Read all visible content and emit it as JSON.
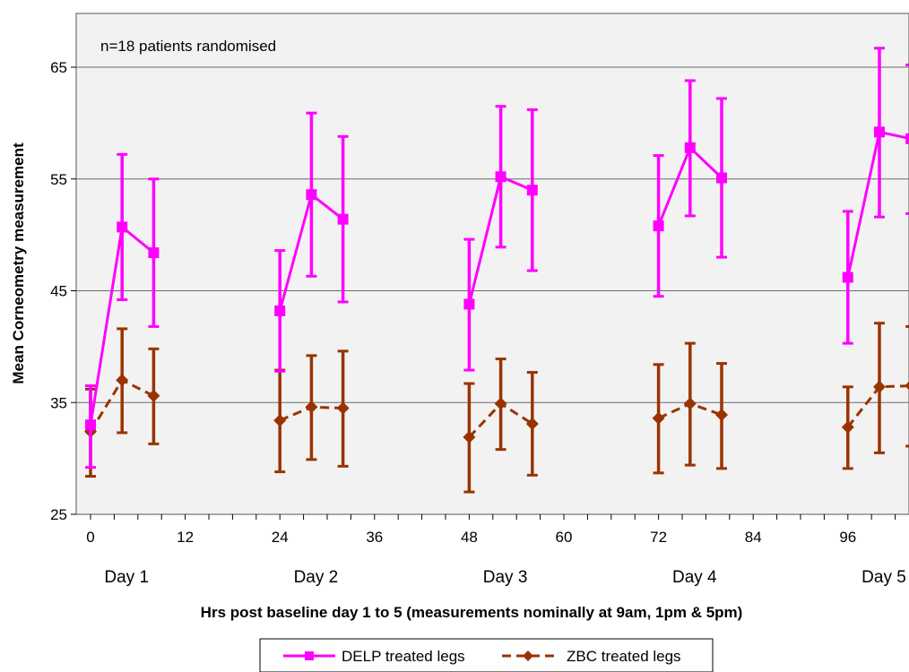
{
  "chart_data": {
    "type": "line",
    "xlabel": "Hrs post baseline day 1 to 5 (measurements nominally at 9am, 1pm & 5pm)",
    "ylabel": "Mean Corneometry measurement",
    "annotation": "n=18 patients randomised",
    "xlim": [
      0,
      108
    ],
    "ylim": [
      25,
      70
    ],
    "x_ticks": [
      0,
      12,
      24,
      36,
      48,
      60,
      72,
      84,
      96
    ],
    "y_ticks": [
      25,
      35,
      45,
      55,
      65
    ],
    "grid": "horizontal",
    "day_labels": [
      {
        "label": "Day 1",
        "x": 4
      },
      {
        "label": "Day 2",
        "x": 28
      },
      {
        "label": "Day 3",
        "x": 52
      },
      {
        "label": "Day 4",
        "x": 76
      },
      {
        "label": "Day 5",
        "x": 100
      }
    ],
    "legend_position": "bottom",
    "series": [
      {
        "name": "DELP treated legs",
        "color": "#ff00ff",
        "marker": "square",
        "line_style": "solid",
        "points": [
          {
            "x": 0,
            "y": 33.0,
            "low": 29.2,
            "high": 36.5
          },
          {
            "x": 4,
            "y": 50.7,
            "low": 44.2,
            "high": 57.2
          },
          {
            "x": 8,
            "y": 48.4,
            "low": 41.8,
            "high": 55.0
          },
          {
            "x": 24,
            "y": 43.2,
            "low": 37.8,
            "high": 48.6
          },
          {
            "x": 28,
            "y": 53.6,
            "low": 46.3,
            "high": 60.9
          },
          {
            "x": 32,
            "y": 51.4,
            "low": 44.0,
            "high": 58.8
          },
          {
            "x": 48,
            "y": 43.8,
            "low": 37.9,
            "high": 49.6
          },
          {
            "x": 52,
            "y": 55.2,
            "low": 48.9,
            "high": 61.5
          },
          {
            "x": 56,
            "y": 54.0,
            "low": 46.8,
            "high": 61.2
          },
          {
            "x": 72,
            "y": 50.8,
            "low": 44.5,
            "high": 57.1
          },
          {
            "x": 76,
            "y": 57.8,
            "low": 51.7,
            "high": 63.8
          },
          {
            "x": 80,
            "y": 55.1,
            "low": 48.0,
            "high": 62.2
          },
          {
            "x": 96,
            "y": 46.2,
            "low": 40.3,
            "high": 52.1
          },
          {
            "x": 100,
            "y": 59.2,
            "low": 51.6,
            "high": 66.7
          },
          {
            "x": 104,
            "y": 58.6,
            "low": 51.9,
            "high": 65.2
          }
        ]
      },
      {
        "name": "ZBC treated legs",
        "color": "#993300",
        "marker": "diamond",
        "line_style": "dashed",
        "points": [
          {
            "x": 0,
            "y": 32.4,
            "low": 28.4,
            "high": 36.2
          },
          {
            "x": 4,
            "y": 37.0,
            "low": 32.3,
            "high": 41.6
          },
          {
            "x": 8,
            "y": 35.6,
            "low": 31.3,
            "high": 39.8
          },
          {
            "x": 24,
            "y": 33.4,
            "low": 28.8,
            "high": 37.9
          },
          {
            "x": 28,
            "y": 34.6,
            "low": 29.9,
            "high": 39.2
          },
          {
            "x": 32,
            "y": 34.5,
            "low": 29.3,
            "high": 39.6
          },
          {
            "x": 48,
            "y": 31.9,
            "low": 27.0,
            "high": 36.7
          },
          {
            "x": 52,
            "y": 34.9,
            "low": 30.8,
            "high": 38.9
          },
          {
            "x": 56,
            "y": 33.1,
            "low": 28.5,
            "high": 37.7
          },
          {
            "x": 72,
            "y": 33.6,
            "low": 28.7,
            "high": 38.4
          },
          {
            "x": 76,
            "y": 34.9,
            "low": 29.4,
            "high": 40.3
          },
          {
            "x": 80,
            "y": 33.9,
            "low": 29.1,
            "high": 38.5
          },
          {
            "x": 96,
            "y": 32.8,
            "low": 29.1,
            "high": 36.4
          },
          {
            "x": 100,
            "y": 36.4,
            "low": 30.5,
            "high": 42.1
          },
          {
            "x": 104,
            "y": 36.5,
            "low": 31.1,
            "high": 41.8
          }
        ]
      }
    ]
  }
}
